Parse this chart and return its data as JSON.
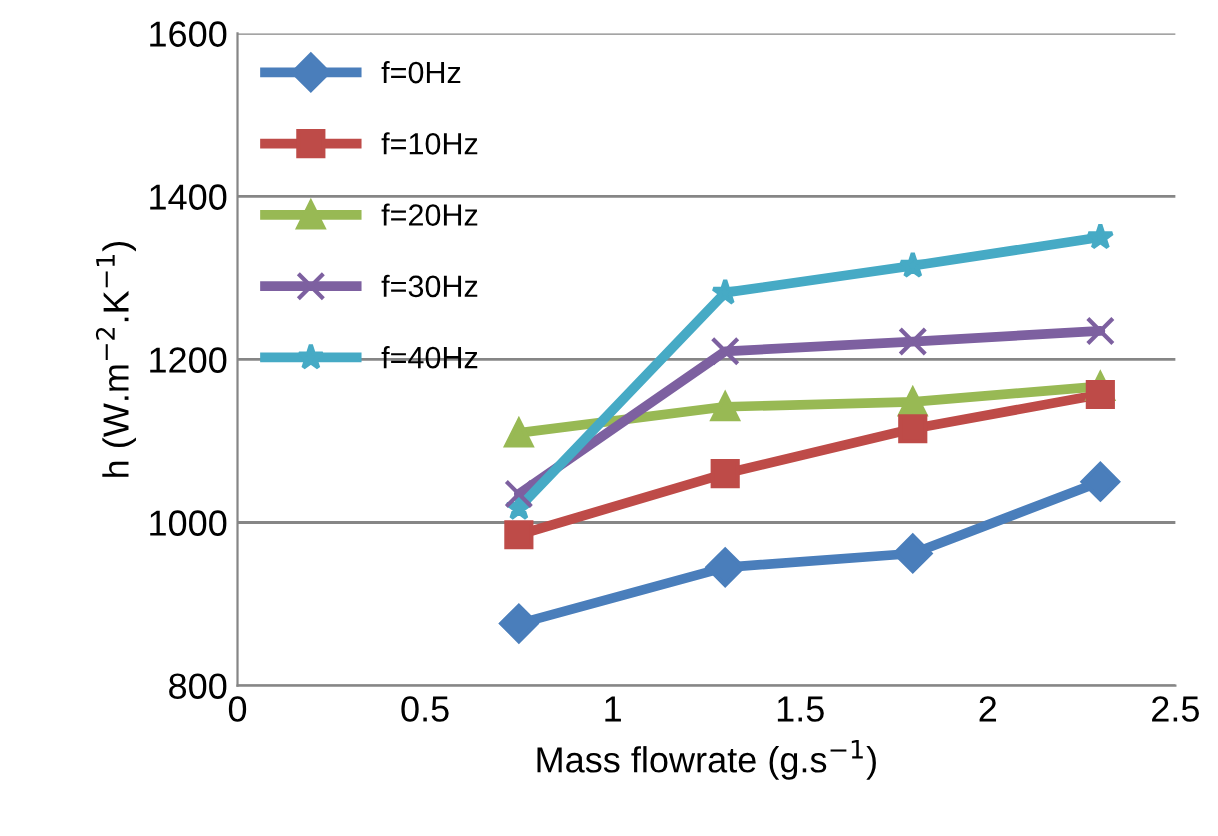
{
  "chart_data": {
    "type": "line",
    "xlabel": "Mass flowrate (g.s$^{−1}$)",
    "ylabel": "h (W.m$^{−2}$.K$^{−1}$)",
    "x": [
      0.75,
      1.3,
      1.8,
      2.3
    ],
    "series": [
      {
        "name": "f=0Hz",
        "color": "#4a7ebb",
        "marker": "diamond",
        "values": [
          876,
          945,
          962,
          1050
        ]
      },
      {
        "name": "f=10Hz",
        "color": "#be4b48",
        "marker": "square",
        "values": [
          985,
          1060,
          1115,
          1157
        ]
      },
      {
        "name": "f=20Hz",
        "color": "#98b954",
        "marker": "triangle",
        "values": [
          1110,
          1142,
          1148,
          1167
        ]
      },
      {
        "name": "f=30Hz",
        "color": "#7d60a0",
        "marker": "cross",
        "values": [
          1035,
          1210,
          1222,
          1235
        ]
      },
      {
        "name": "f=40Hz",
        "color": "#46aac5",
        "marker": "star",
        "values": [
          1018,
          1282,
          1315,
          1350
        ]
      }
    ],
    "xlim": [
      0,
      2.5
    ],
    "xticks": [
      0,
      0.5,
      1,
      1.5,
      2,
      2.5
    ],
    "ylim": [
      800,
      1600
    ],
    "yticks": [
      800,
      1000,
      1200,
      1400,
      1600
    ],
    "grid": "y",
    "legend": "top left",
    "line_style": "solid"
  }
}
